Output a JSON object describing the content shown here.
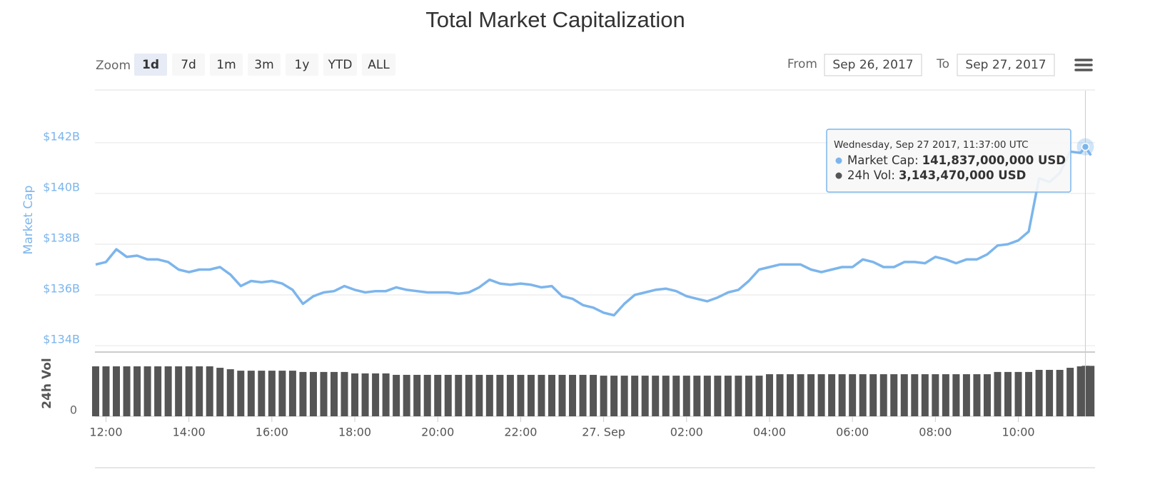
{
  "controls": {
    "zoom_label": "Zoom",
    "zoom_buttons": [
      "1d",
      "7d",
      "1m",
      "3m",
      "1y",
      "YTD",
      "ALL"
    ],
    "selected": "1d",
    "from_label": "From",
    "from": "Sep 26, 2017",
    "to_label": "To",
    "to": "Sep 27, 2017"
  },
  "chart_data": {
    "type": "line",
    "title": "Total Market Capitalization",
    "y_label": "Market Cap",
    "y2_label": "24h Vol",
    "x": [
      "2017-09-26 11:45",
      "2017-09-26 12:00",
      "2017-09-26 12:15",
      "2017-09-26 12:30",
      "2017-09-26 12:45",
      "2017-09-26 13:00",
      "2017-09-26 13:15",
      "2017-09-26 13:30",
      "2017-09-26 13:45",
      "2017-09-26 14:00",
      "2017-09-26 14:15",
      "2017-09-26 14:30",
      "2017-09-26 14:45",
      "2017-09-26 15:00",
      "2017-09-26 15:15",
      "2017-09-26 15:30",
      "2017-09-26 15:45",
      "2017-09-26 16:00",
      "2017-09-26 16:15",
      "2017-09-26 16:30",
      "2017-09-26 16:45",
      "2017-09-26 17:00",
      "2017-09-26 17:15",
      "2017-09-26 17:30",
      "2017-09-26 17:45",
      "2017-09-26 18:00",
      "2017-09-26 18:15",
      "2017-09-26 18:30",
      "2017-09-26 18:45",
      "2017-09-26 19:00",
      "2017-09-26 19:15",
      "2017-09-26 19:30",
      "2017-09-26 19:45",
      "2017-09-26 20:00",
      "2017-09-26 20:15",
      "2017-09-26 20:30",
      "2017-09-26 20:45",
      "2017-09-26 21:00",
      "2017-09-26 21:15",
      "2017-09-26 21:30",
      "2017-09-26 21:45",
      "2017-09-26 22:00",
      "2017-09-26 22:15",
      "2017-09-26 22:30",
      "2017-09-26 22:45",
      "2017-09-26 23:00",
      "2017-09-26 23:15",
      "2017-09-26 23:30",
      "2017-09-26 23:45",
      "2017-09-27 00:00",
      "2017-09-27 00:15",
      "2017-09-27 00:30",
      "2017-09-27 00:45",
      "2017-09-27 01:00",
      "2017-09-27 01:15",
      "2017-09-27 01:30",
      "2017-09-27 01:45",
      "2017-09-27 02:00",
      "2017-09-27 02:15",
      "2017-09-27 02:30",
      "2017-09-27 02:45",
      "2017-09-27 03:00",
      "2017-09-27 03:15",
      "2017-09-27 03:30",
      "2017-09-27 03:45",
      "2017-09-27 04:00",
      "2017-09-27 04:15",
      "2017-09-27 04:30",
      "2017-09-27 04:45",
      "2017-09-27 05:00",
      "2017-09-27 05:15",
      "2017-09-27 05:30",
      "2017-09-27 05:45",
      "2017-09-27 06:00",
      "2017-09-27 06:15",
      "2017-09-27 06:30",
      "2017-09-27 06:45",
      "2017-09-27 07:00",
      "2017-09-27 07:15",
      "2017-09-27 07:30",
      "2017-09-27 07:45",
      "2017-09-27 08:00",
      "2017-09-27 08:15",
      "2017-09-27 08:30",
      "2017-09-27 08:45",
      "2017-09-27 09:00",
      "2017-09-27 09:15",
      "2017-09-27 09:30",
      "2017-09-27 09:45",
      "2017-09-27 10:00",
      "2017-09-27 10:15",
      "2017-09-27 10:30",
      "2017-09-27 10:45",
      "2017-09-27 11:00",
      "2017-09-27 11:15",
      "2017-09-27 11:30",
      "2017-09-27 11:37",
      "2017-09-27 11:45"
    ],
    "series": [
      {
        "name": "Market Cap",
        "color": "#7cb5ec",
        "values": [
          137.2,
          137.3,
          137.8,
          137.5,
          137.55,
          137.4,
          137.4,
          137.3,
          137.0,
          136.9,
          137.0,
          137.0,
          137.1,
          136.8,
          136.35,
          136.55,
          136.5,
          136.55,
          136.45,
          136.2,
          135.65,
          135.95,
          136.1,
          136.15,
          136.35,
          136.2,
          136.1,
          136.15,
          136.15,
          136.3,
          136.2,
          136.15,
          136.1,
          136.1,
          136.1,
          136.05,
          136.1,
          136.3,
          136.6,
          136.45,
          136.4,
          136.45,
          136.4,
          136.3,
          136.35,
          135.95,
          135.85,
          135.6,
          135.5,
          135.3,
          135.2,
          135.65,
          136.0,
          136.1,
          136.2,
          136.25,
          136.15,
          135.95,
          135.85,
          135.75,
          135.9,
          136.1,
          136.2,
          136.55,
          137.0,
          137.1,
          137.2,
          137.2,
          137.2,
          137.0,
          136.9,
          137.0,
          137.1,
          137.1,
          137.4,
          137.3,
          137.1,
          137.1,
          137.3,
          137.3,
          137.25,
          137.5,
          137.4,
          137.25,
          137.4,
          137.4,
          137.6,
          137.95,
          138.0,
          138.15,
          138.5,
          140.6,
          140.45,
          140.8,
          141.65,
          141.6,
          141.837,
          141.5
        ]
      },
      {
        "name": "24h Vol",
        "color": "#555555",
        "axis": "y2",
        "values": [
          3110000000,
          3110000000,
          3110000000,
          3110000000,
          3110000000,
          3110000000,
          3110000000,
          3110000000,
          3110000000,
          3110000000,
          3110000000,
          3110000000,
          3020000000,
          2930000000,
          2840000000,
          2840000000,
          2840000000,
          2840000000,
          2840000000,
          2840000000,
          2760000000,
          2760000000,
          2760000000,
          2760000000,
          2760000000,
          2670000000,
          2670000000,
          2670000000,
          2670000000,
          2580000000,
          2580000000,
          2580000000,
          2580000000,
          2580000000,
          2580000000,
          2580000000,
          2580000000,
          2580000000,
          2580000000,
          2580000000,
          2580000000,
          2580000000,
          2580000000,
          2580000000,
          2580000000,
          2580000000,
          2580000000,
          2580000000,
          2580000000,
          2530000000,
          2530000000,
          2530000000,
          2530000000,
          2530000000,
          2530000000,
          2530000000,
          2530000000,
          2530000000,
          2530000000,
          2530000000,
          2530000000,
          2530000000,
          2530000000,
          2530000000,
          2530000000,
          2620000000,
          2620000000,
          2620000000,
          2620000000,
          2620000000,
          2620000000,
          2620000000,
          2620000000,
          2620000000,
          2620000000,
          2620000000,
          2620000000,
          2620000000,
          2620000000,
          2620000000,
          2620000000,
          2620000000,
          2620000000,
          2620000000,
          2620000000,
          2620000000,
          2620000000,
          2760000000,
          2760000000,
          2760000000,
          2760000000,
          2890000000,
          2890000000,
          2890000000,
          3020000000,
          3110000000,
          3143470000,
          3140000000
        ]
      }
    ],
    "xlim": [
      "2017-09-26 11:44",
      "2017-09-27 11:51"
    ],
    "xticks": [
      {
        "value": "2017-09-26 12:00",
        "label": "12:00"
      },
      {
        "value": "2017-09-26 14:00",
        "label": "14:00"
      },
      {
        "value": "2017-09-26 16:00",
        "label": "16:00"
      },
      {
        "value": "2017-09-26 18:00",
        "label": "18:00"
      },
      {
        "value": "2017-09-26 20:00",
        "label": "20:00"
      },
      {
        "value": "2017-09-26 22:00",
        "label": "22:00"
      },
      {
        "value": "2017-09-27 00:00",
        "label": "27. Sep"
      },
      {
        "value": "2017-09-27 02:00",
        "label": "02:00"
      },
      {
        "value": "2017-09-27 04:00",
        "label": "04:00"
      },
      {
        "value": "2017-09-27 06:00",
        "label": "06:00"
      },
      {
        "value": "2017-09-27 08:00",
        "label": "08:00"
      },
      {
        "value": "2017-09-27 10:00",
        "label": "10:00"
      }
    ],
    "ylim": [
      133.75,
      144.05
    ],
    "yticks": [
      {
        "value": 134,
        "label": "$134B"
      },
      {
        "value": 136,
        "label": "$136B"
      },
      {
        "value": 138,
        "label": "$138B"
      },
      {
        "value": 140,
        "label": "$140B"
      },
      {
        "value": 142,
        "label": "$142B"
      }
    ],
    "y2lim": [
      0,
      4000000000
    ],
    "y2ticks": [
      0
    ],
    "grid": true,
    "tooltip": {
      "header": "Wednesday, Sep 27 2017, 11:37:00 UTC",
      "rows": [
        {
          "label": "Market Cap:",
          "value": "141,837,000,000 USD"
        },
        {
          "label": "24h Vol:",
          "value": "3,143,470,000 USD"
        }
      ]
    }
  }
}
